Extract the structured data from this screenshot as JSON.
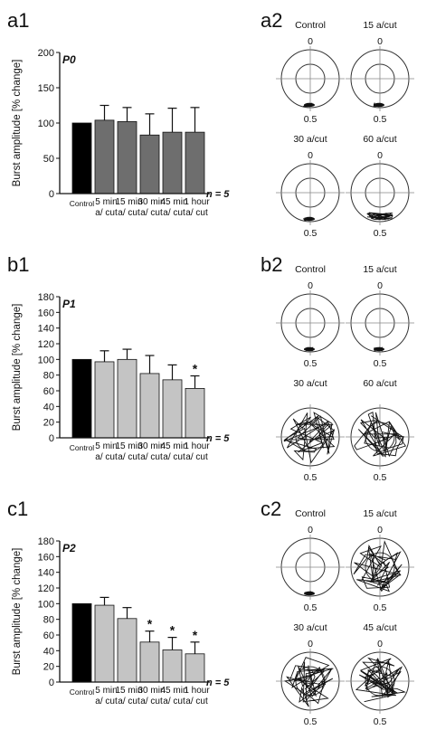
{
  "panels": [
    {
      "label": "a1",
      "polar_label": "a2",
      "bar_chart": {
        "type": "bar",
        "title": "P0",
        "ylabel": "Burst amplitude [% change]",
        "ylim": [
          0,
          200
        ],
        "yticks": [
          0,
          50,
          100,
          150,
          200
        ],
        "categories": [
          [
            "Control"
          ],
          [
            "5 min",
            "a/ cut"
          ],
          [
            "15 min",
            "a/ cut"
          ],
          [
            "30 min",
            "a/ cut"
          ],
          [
            "45 min",
            "a/ cut"
          ],
          [
            "1 hour",
            "a/ cut"
          ]
        ],
        "values": [
          100,
          104,
          102,
          83,
          87,
          87
        ],
        "errors": [
          0,
          21,
          20,
          30,
          34,
          35
        ],
        "significant": [
          false,
          false,
          false,
          false,
          false,
          false
        ],
        "n_label": "n = 5",
        "colors": [
          "#000000",
          "#6e6e6e",
          "#6e6e6e",
          "#6e6e6e",
          "#6e6e6e",
          "#6e6e6e"
        ]
      },
      "polar_plots": [
        {
          "title": "Control",
          "top": "0",
          "bottom": "0.5",
          "spread": "low"
        },
        {
          "title": "15 a/cut",
          "top": "0",
          "bottom": "0.5",
          "spread": "low"
        },
        {
          "title": "30 a/cut",
          "top": "0",
          "bottom": "0.5",
          "spread": "low"
        },
        {
          "title": "60 a/cut",
          "top": "0",
          "bottom": "0.5",
          "spread": "mid"
        }
      ]
    },
    {
      "label": "b1",
      "polar_label": "b2",
      "bar_chart": {
        "type": "bar",
        "title": "P1",
        "ylabel": "Burst amplitude [% change]",
        "ylim": [
          0,
          180
        ],
        "yticks": [
          0,
          20,
          40,
          60,
          80,
          100,
          120,
          140,
          160,
          180
        ],
        "categories": [
          [
            "Control"
          ],
          [
            "5 min",
            "a/ cut"
          ],
          [
            "15 min",
            "a/ cut"
          ],
          [
            "30 min",
            "a/ cut"
          ],
          [
            "45 min",
            "a/ cut"
          ],
          [
            "1 hour",
            "a/ cut"
          ]
        ],
        "values": [
          100,
          97,
          100,
          82,
          74,
          63
        ],
        "errors": [
          0,
          14,
          13,
          23,
          19,
          16
        ],
        "significant": [
          false,
          false,
          false,
          false,
          false,
          true
        ],
        "n_label": "n = 5",
        "colors": [
          "#000000",
          "#c4c4c4",
          "#c4c4c4",
          "#c4c4c4",
          "#c4c4c4",
          "#c4c4c4"
        ]
      },
      "polar_plots": [
        {
          "title": "Control",
          "top": "0",
          "bottom": "0.5",
          "spread": "low"
        },
        {
          "title": "15 a/cut",
          "top": "0",
          "bottom": "0.5",
          "spread": "low"
        },
        {
          "title": "30 a/cut",
          "top": "",
          "bottom": "0.5",
          "spread": "high"
        },
        {
          "title": "60 a/cut",
          "top": "",
          "bottom": "0.5",
          "spread": "high"
        }
      ]
    },
    {
      "label": "c1",
      "polar_label": "c2",
      "bar_chart": {
        "type": "bar",
        "title": "P2",
        "ylabel": "Burst amplitude [% change]",
        "ylim": [
          0,
          180
        ],
        "yticks": [
          0,
          20,
          40,
          60,
          80,
          100,
          120,
          140,
          160,
          180
        ],
        "categories": [
          [
            "Control"
          ],
          [
            "5 min",
            "a/ cut"
          ],
          [
            "15 min",
            "a/ cut"
          ],
          [
            "30 min",
            "a/ cut"
          ],
          [
            "45 min",
            "a/ cut"
          ],
          [
            "1 hour",
            "a/ cut"
          ]
        ],
        "values": [
          100,
          98,
          81,
          51,
          41,
          36
        ],
        "errors": [
          0,
          10,
          14,
          14,
          16,
          15
        ],
        "significant": [
          false,
          false,
          false,
          true,
          true,
          true
        ],
        "n_label": "n = 5",
        "colors": [
          "#000000",
          "#c4c4c4",
          "#c4c4c4",
          "#c4c4c4",
          "#c4c4c4",
          "#c4c4c4"
        ]
      },
      "polar_plots": [
        {
          "title": "Control",
          "top": "0",
          "bottom": "0.5",
          "spread": "low"
        },
        {
          "title": "15 a/cut",
          "top": "0",
          "bottom": "0.5",
          "spread": "high"
        },
        {
          "title": "30 a/cut",
          "top": "0",
          "bottom": "0.5",
          "spread": "high"
        },
        {
          "title": "45 a/cut",
          "top": "0",
          "bottom": "0.5",
          "spread": "high"
        }
      ]
    }
  ]
}
